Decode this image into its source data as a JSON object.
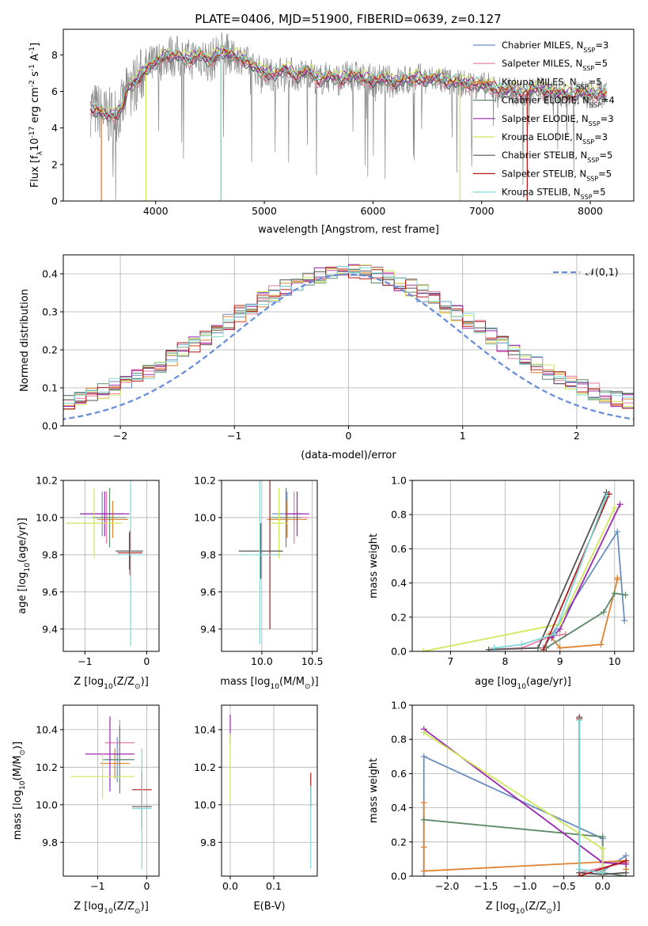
{
  "title": "PLATE=0406, MJD=51900, FIBERID=0639, z=0.127",
  "colors": {
    "chab_miles": "#6c8ebf",
    "salp_miles": "#e97aa6",
    "krou_miles": "#e0822f",
    "chab_elodie": "#5f8a6a",
    "salp_elodie": "#9b27b0",
    "krou_elodie": "#cfe85a",
    "chab_stelib": "#555555",
    "salp_stelib": "#b31b1b",
    "krou_stelib": "#80d8d8",
    "data": "#888888"
  },
  "legend": {
    "spectrum": [
      "Chabrier MILES, N$_{SSP}$=3",
      "Salpeter MILES, N$_{SSP}$=5",
      "Kroupa MILES, N$_{SSP}$=5",
      "Chabrier ELODIE, N$_{SSP}$=4",
      "Salpeter ELODIE, N$_{SSP}$=3",
      "Kroupa ELODIE, N$_{SSP}$=3",
      "Chabrier STELIB, N$_{SSP}$=5",
      "Salpeter STELIB, N$_{SSP}$=5",
      "Kroupa STELIB, N$_{SSP}$=5"
    ],
    "hist": "$\\mathcal{N}(0,1)$"
  },
  "chart_data": [
    {
      "type": "line",
      "xlabel": "wavelength [Angstrom, rest frame]",
      "ylabel": "Flux [f$_\\lambda$10$^{-17}$ erg cm$^{-2}$ s$^{-1}$ A$^{-1}$]",
      "xlim": [
        3150,
        8400
      ],
      "ylim": [
        0,
        9.4
      ],
      "xticks": [
        4000,
        5000,
        6000,
        7000,
        8000
      ],
      "yticks": [
        0,
        2,
        4,
        6,
        8
      ],
      "model_flux": [
        [
          3400,
          5.1
        ],
        [
          3480,
          4.9
        ],
        [
          3550,
          4.6
        ],
        [
          3650,
          4.8
        ],
        [
          3700,
          5.2
        ],
        [
          3750,
          6.2
        ],
        [
          3800,
          6.4
        ],
        [
          3850,
          6.7
        ],
        [
          3900,
          7.2
        ],
        [
          4000,
          7.5
        ],
        [
          4100,
          8.0
        ],
        [
          4200,
          7.9
        ],
        [
          4300,
          7.7
        ],
        [
          4400,
          8.0
        ],
        [
          4500,
          7.6
        ],
        [
          4600,
          8.2
        ],
        [
          4700,
          7.9
        ],
        [
          4800,
          7.8
        ],
        [
          4900,
          7.3
        ],
        [
          5000,
          7.0
        ],
        [
          5100,
          6.9
        ],
        [
          5200,
          7.2
        ],
        [
          5300,
          6.8
        ],
        [
          5400,
          7.1
        ],
        [
          5500,
          6.6
        ],
        [
          5600,
          6.8
        ],
        [
          5700,
          6.6
        ],
        [
          5800,
          6.9
        ],
        [
          5900,
          6.7
        ],
        [
          6000,
          6.6
        ],
        [
          6100,
          6.6
        ],
        [
          6200,
          6.5
        ],
        [
          6300,
          6.6
        ],
        [
          6400,
          6.7
        ],
        [
          6500,
          6.6
        ],
        [
          6600,
          6.7
        ],
        [
          6700,
          6.5
        ],
        [
          6800,
          6.4
        ],
        [
          6900,
          6.4
        ],
        [
          7000,
          6.3
        ],
        [
          7100,
          6.2
        ],
        [
          7200,
          6.0
        ],
        [
          7300,
          6.0
        ],
        [
          7400,
          5.9
        ],
        [
          7500,
          6.1
        ],
        [
          7600,
          6.0
        ],
        [
          7700,
          5.9
        ],
        [
          7800,
          5.8
        ],
        [
          7900,
          5.9
        ],
        [
          8000,
          5.8
        ],
        [
          8100,
          5.9
        ],
        [
          8150,
          5.7
        ]
      ]
    },
    {
      "type": "bar",
      "xlabel": "(data-model)/error",
      "ylabel": "Normed distribution",
      "xlim": [
        -2.5,
        2.5
      ],
      "ylim": [
        0,
        0.45
      ],
      "xticks": [
        -2,
        -1,
        0,
        1,
        2
      ],
      "yticks": [
        0.0,
        0.1,
        0.2,
        0.3,
        0.4
      ]
    },
    {
      "type": "scatter",
      "xlabel": "Z [log$_{10}$(Z/Z$_\\odot$)]",
      "ylabel": "age  [log$_{10}$($age/yr$)]",
      "xlim": [
        -1.35,
        0.2
      ],
      "ylim": [
        9.28,
        10.2
      ],
      "xticks": [
        -1,
        0
      ],
      "yticks": [
        9.4,
        9.6,
        9.8,
        10.0,
        10.2
      ],
      "points": [
        {
          "x": -0.72,
          "y": 10.02,
          "xerr": 0.35,
          "yerr": 0.12,
          "c": "chab_miles"
        },
        {
          "x": -0.65,
          "y": 10.0,
          "xerr": 0.2,
          "yerr": 0.14,
          "c": "salp_miles"
        },
        {
          "x": -0.55,
          "y": 9.99,
          "xerr": 0.25,
          "yerr": 0.1,
          "c": "krou_miles"
        },
        {
          "x": -0.6,
          "y": 10.0,
          "xerr": 0.28,
          "yerr": 0.16,
          "c": "chab_elodie"
        },
        {
          "x": -0.68,
          "y": 10.02,
          "xerr": 0.4,
          "yerr": 0.12,
          "c": "salp_elodie"
        },
        {
          "x": -0.85,
          "y": 9.97,
          "xerr": 0.45,
          "yerr": 0.19,
          "c": "krou_elodie"
        },
        {
          "x": -0.28,
          "y": 9.82,
          "xerr": 0.22,
          "yerr": 0.1,
          "c": "chab_stelib"
        },
        {
          "x": -0.27,
          "y": 9.81,
          "xerr": 0.2,
          "yerr": 0.12,
          "c": "salp_stelib"
        },
        {
          "x": -0.26,
          "y": 9.8,
          "xerr": 0.22,
          "yerr": 0.49,
          "c": "krou_stelib"
        }
      ]
    },
    {
      "type": "scatter",
      "xlabel": "mass [log$_{10}$($M/M_\\odot$)]",
      "ylabel": "",
      "xlim": [
        9.6,
        10.55
      ],
      "ylim": [
        9.28,
        10.2
      ],
      "xticks": [
        10.0,
        10.5
      ],
      "yticks": [
        9.4,
        9.6,
        9.8,
        10.0,
        10.2
      ],
      "points": [
        {
          "x": 10.25,
          "y": 10.02,
          "xerr": 0.15,
          "yerr": 0.12,
          "c": "chab_miles"
        },
        {
          "x": 10.32,
          "y": 10.0,
          "xerr": 0.15,
          "yerr": 0.14,
          "c": "salp_miles"
        },
        {
          "x": 10.25,
          "y": 9.99,
          "xerr": 0.2,
          "yerr": 0.1,
          "c": "krou_miles"
        },
        {
          "x": 10.24,
          "y": 10.0,
          "xerr": 0.15,
          "yerr": 0.16,
          "c": "chab_elodie"
        },
        {
          "x": 10.35,
          "y": 10.02,
          "xerr": 0.12,
          "yerr": 0.12,
          "c": "salp_elodie"
        },
        {
          "x": 10.17,
          "y": 9.97,
          "xerr": 0.08,
          "yerr": 0.19,
          "c": "krou_elodie"
        },
        {
          "x": 9.99,
          "y": 9.82,
          "xerr": 0.22,
          "yerr": 0.15,
          "c": "chab_stelib"
        },
        {
          "x": 10.08,
          "y": 9.8,
          "xerr": 0.1,
          "yerr": 0.4,
          "c": "salp_stelib"
        },
        {
          "x": 9.98,
          "y": 9.8,
          "xerr": 0.2,
          "yerr": 0.48,
          "c": "krou_stelib"
        }
      ]
    },
    {
      "type": "line",
      "xlabel": "age  [log$_{10}$($age/yr$)]",
      "ylabel": "mass weight",
      "xlim": [
        6.3,
        10.35
      ],
      "ylim": [
        0,
        1.0
      ],
      "xticks": [
        7,
        8,
        9,
        10
      ],
      "yticks": [
        0.0,
        0.2,
        0.4,
        0.6,
        0.8,
        1.0
      ],
      "series": [
        {
          "c": "chab_miles",
          "x": [
            8.7,
            10.05,
            10.18
          ],
          "y": [
            0.02,
            0.7,
            0.18
          ]
        },
        {
          "c": "salp_miles",
          "x": [
            7.7,
            8.3,
            8.85,
            9.1
          ],
          "y": [
            0.01,
            0.02,
            0.09,
            0.1
          ]
        },
        {
          "c": "krou_miles",
          "x": [
            8.8,
            9.0,
            9.75,
            10.05,
            10.05
          ],
          "y": [
            0.1,
            0.02,
            0.04,
            0.42,
            0.43
          ]
        },
        {
          "c": "chab_elodie",
          "x": [
            8.75,
            9.8,
            10.0,
            10.2
          ],
          "y": [
            0.02,
            0.23,
            0.34,
            0.33
          ]
        },
        {
          "c": "salp_elodie",
          "x": [
            8.85,
            9.0,
            10.1
          ],
          "y": [
            0.08,
            0.13,
            0.86
          ]
        },
        {
          "c": "krou_elodie",
          "x": [
            6.5,
            9.0,
            10.0
          ],
          "y": [
            0.0,
            0.16,
            0.84
          ]
        },
        {
          "c": "chab_stelib",
          "x": [
            7.7,
            8.6,
            9.85
          ],
          "y": [
            0.01,
            0.02,
            0.93
          ]
        },
        {
          "c": "salp_stelib",
          "x": [
            8.7,
            9.9
          ],
          "y": [
            0.01,
            0.92
          ]
        },
        {
          "c": "krou_stelib",
          "x": [
            7.8,
            8.3,
            8.9,
            9.85
          ],
          "y": [
            0.02,
            0.04,
            0.1,
            0.91
          ]
        }
      ]
    },
    {
      "type": "scatter",
      "xlabel": "Z [log$_{10}$(Z/Z$_\\odot$)]",
      "ylabel": "mass [log$_{10}$($M/M_\\odot$)]",
      "xlim": [
        -1.7,
        0.25
      ],
      "ylim": [
        9.62,
        10.53
      ],
      "xticks": [
        -1,
        0
      ],
      "yticks": [
        9.8,
        10.0,
        10.2,
        10.4
      ],
      "points": [
        {
          "x": -0.6,
          "y": 10.24,
          "xerr": 0.3,
          "yerr": 0.12,
          "c": "chab_miles"
        },
        {
          "x": -0.55,
          "y": 10.33,
          "xerr": 0.3,
          "yerr": 0.12,
          "c": "salp_miles"
        },
        {
          "x": -0.65,
          "y": 10.22,
          "xerr": 0.3,
          "yerr": 0.08,
          "c": "krou_miles"
        },
        {
          "x": -0.55,
          "y": 10.24,
          "xerr": 0.3,
          "yerr": 0.18,
          "c": "chab_elodie"
        },
        {
          "x": -0.75,
          "y": 10.27,
          "xerr": 0.5,
          "yerr": 0.2,
          "c": "salp_elodie"
        },
        {
          "x": -0.9,
          "y": 10.15,
          "xerr": 0.65,
          "yerr": 0.12,
          "c": "krou_elodie"
        },
        {
          "x": -0.1,
          "y": 9.99,
          "xerr": 0.2,
          "yerr": 0.12,
          "c": "chab_stelib"
        },
        {
          "x": -0.1,
          "y": 10.08,
          "xerr": 0.2,
          "yerr": 0.1,
          "c": "salp_stelib"
        },
        {
          "x": -0.1,
          "y": 9.98,
          "xerr": 0.2,
          "yerr": 0.32,
          "c": "krou_stelib"
        }
      ]
    },
    {
      "type": "scatter",
      "xlabel": "E(B-V)",
      "ylabel": "",
      "xlim": [
        -0.02,
        0.2
      ],
      "ylim": [
        9.62,
        10.53
      ],
      "xticks": [
        0.0,
        0.1
      ],
      "yticks": [
        9.8,
        10.0,
        10.2,
        10.4
      ],
      "points": [
        {
          "x": 0.0,
          "y": 10.4,
          "xerr": 0,
          "yerr": 0.08,
          "c": "salp_elodie"
        },
        {
          "x": 0.0,
          "y": 10.2,
          "xerr": 0,
          "yerr": 0.18,
          "c": "krou_elodie"
        },
        {
          "x": 0.185,
          "y": 10.08,
          "xerr": 0,
          "yerr": 0.09,
          "c": "salp_stelib"
        },
        {
          "x": 0.185,
          "y": 9.88,
          "xerr": 0,
          "yerr": 0.22,
          "c": "krou_stelib"
        }
      ]
    },
    {
      "type": "line",
      "xlabel": "Z [log$_{10}$(Z/Z$_\\odot$)]",
      "ylabel": "mass weight",
      "xlim": [
        -2.45,
        0.4
      ],
      "ylim": [
        0,
        1.0
      ],
      "xticks": [
        -2.0,
        -1.5,
        -1.0,
        -0.5,
        0.0
      ],
      "yticks": [
        0.0,
        0.2,
        0.4,
        0.6,
        0.8,
        1.0
      ],
      "series": [
        {
          "c": "chab_miles",
          "x": [
            -2.3,
            -2.3,
            0.0,
            0.0,
            0.3
          ],
          "y": [
            0.0,
            0.7,
            0.22,
            0.03,
            0.12
          ]
        },
        {
          "c": "salp_miles",
          "x": [
            -0.3,
            0.0,
            0.3
          ],
          "y": [
            0.02,
            0.05,
            0.08
          ]
        },
        {
          "c": "krou_miles",
          "x": [
            -2.3,
            -2.3,
            -2.3,
            0.3,
            0.3
          ],
          "y": [
            0.43,
            0.17,
            0.03,
            0.09,
            0.04
          ]
        },
        {
          "c": "chab_elodie",
          "x": [
            -2.3,
            0.0,
            0.0,
            0.3
          ],
          "y": [
            0.33,
            0.23,
            0.02,
            0.0
          ]
        },
        {
          "c": "salp_elodie",
          "x": [
            -2.3,
            0.0,
            0.3
          ],
          "y": [
            0.86,
            0.08,
            0.07
          ]
        },
        {
          "c": "krou_elodie",
          "x": [
            -2.3,
            0.0,
            0.0
          ],
          "y": [
            0.84,
            0.16,
            0.0
          ]
        },
        {
          "c": "chab_stelib",
          "x": [
            -0.3,
            -0.3,
            0.0,
            0.3
          ],
          "y": [
            0.93,
            0.02,
            0.01,
            0.02
          ]
        },
        {
          "c": "salp_stelib",
          "x": [
            -0.3,
            -0.3,
            0.3
          ],
          "y": [
            0.92,
            0.0,
            0.09
          ]
        },
        {
          "c": "krou_stelib",
          "x": [
            -0.3,
            -0.3,
            0.0
          ],
          "y": [
            0.91,
            0.04,
            0.02
          ]
        }
      ]
    }
  ]
}
